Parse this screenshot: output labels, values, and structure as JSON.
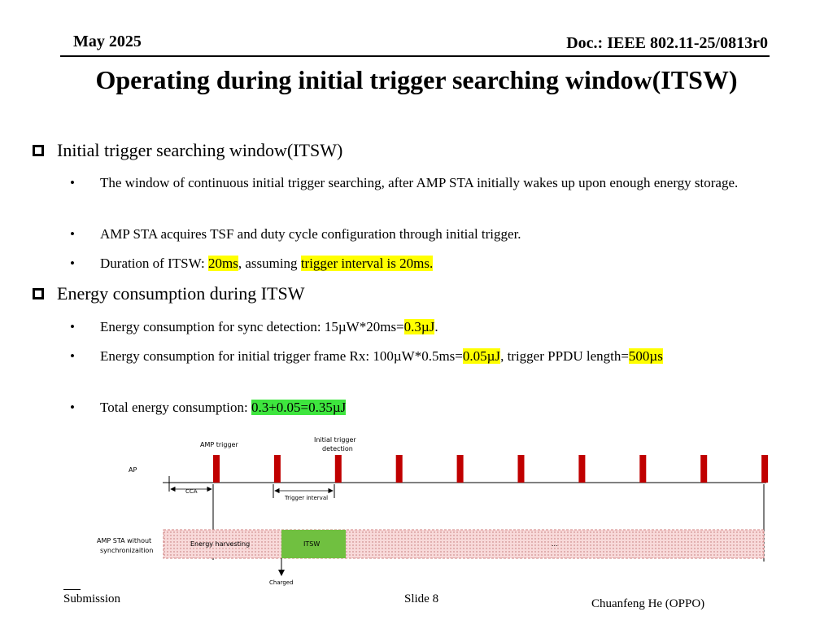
{
  "header": {
    "date": "May 2025",
    "doc": "Doc.: IEEE 802.11-25/0813r0"
  },
  "title": "Operating during initial trigger searching window(ITSW)",
  "sections": [
    {
      "heading": "Initial trigger searching window(ITSW)",
      "bullets": [
        {
          "segments": [
            {
              "text": "The window of continuous initial trigger searching, after AMP STA initially wakes up upon enough energy storage."
            }
          ]
        },
        {
          "segments": [
            {
              "text": "AMP STA acquires TSF and duty cycle configuration through initial trigger."
            }
          ]
        },
        {
          "segments": [
            {
              "text": "Duration of ITSW: "
            },
            {
              "text": "20ms",
              "highlight": "#ffff00"
            },
            {
              "text": ", assuming "
            },
            {
              "text": "trigger interval is 20ms.",
              "highlight": "#ffff00"
            }
          ]
        }
      ]
    },
    {
      "heading": "Energy consumption during ITSW",
      "bullets": [
        {
          "segments": [
            {
              "text": "Energy consumption for sync detection: 15µW*20ms="
            },
            {
              "text": "0.3µJ",
              "highlight": "#ffff00"
            },
            {
              "text": "."
            }
          ]
        },
        {
          "segments": [
            {
              "text": "Energy consumption for initial trigger frame Rx: 100µW*0.5ms="
            },
            {
              "text": "0.05µJ",
              "highlight": "#ffff00"
            },
            {
              "text": ", trigger PPDU length="
            },
            {
              "text": "500µs",
              "highlight": "#ffff00"
            }
          ]
        },
        {
          "segments": [
            {
              "text": "Total energy consumption: "
            },
            {
              "text": "0.3+0.05=0.35µJ",
              "highlight": "#3ee53e"
            }
          ]
        }
      ]
    }
  ],
  "diagram": {
    "labels": {
      "amp_trigger": "AMP trigger",
      "initial_trigger_line1": "Initial trigger",
      "initial_trigger_line2": "detection",
      "ap": "AP",
      "cca": "CCA",
      "trigger_interval": "Trigger interval",
      "sta_line1": "AMP STA without",
      "sta_line2": "synchronizaition",
      "energy_harvesting": "Energy harvesting",
      "itsw": "ITSW",
      "ellipsis": "...",
      "charged": "Charged"
    },
    "trigger_count": 10,
    "colors": {
      "trigger": "#c00000",
      "itsw": "#70c040",
      "harvest_fill": "#f8dada",
      "harvest_border": "#d08080"
    }
  },
  "footer": {
    "left": "Submission",
    "center": "Slide 8",
    "right": "Chuanfeng He (OPPO)"
  }
}
